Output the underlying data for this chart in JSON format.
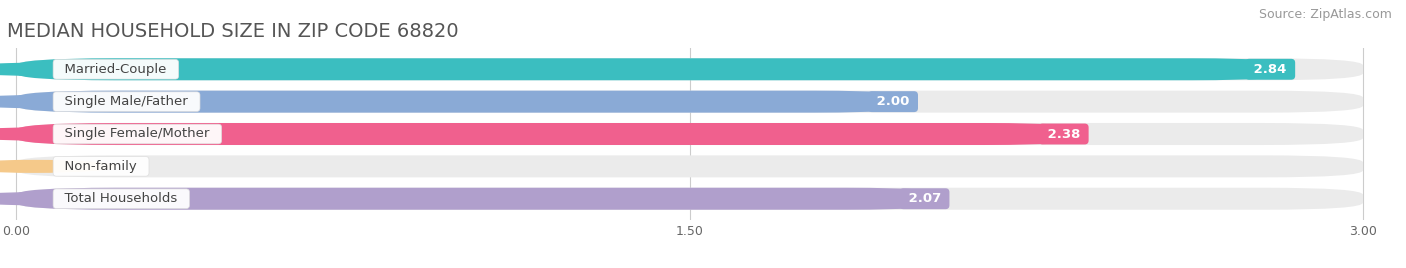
{
  "title": "MEDIAN HOUSEHOLD SIZE IN ZIP CODE 68820",
  "source": "Source: ZipAtlas.com",
  "categories": [
    "Married-Couple",
    "Single Male/Father",
    "Single Female/Mother",
    "Non-family",
    "Total Households"
  ],
  "values": [
    2.84,
    2.0,
    2.38,
    0.0,
    2.07
  ],
  "bar_colors": [
    "#3bbec0",
    "#8aaad6",
    "#f0608e",
    "#f5c98a",
    "#b09fcc"
  ],
  "xlim_max": 3.0,
  "xticks": [
    0.0,
    1.5,
    3.0
  ],
  "xtick_labels": [
    "0.00",
    "1.50",
    "3.00"
  ],
  "background_color": "#ffffff",
  "bar_background_color": "#ebebeb",
  "title_fontsize": 14,
  "source_fontsize": 9,
  "bar_label_fontsize": 9.5,
  "cat_label_fontsize": 9.5,
  "figsize": [
    14.06,
    2.68
  ],
  "dpi": 100
}
